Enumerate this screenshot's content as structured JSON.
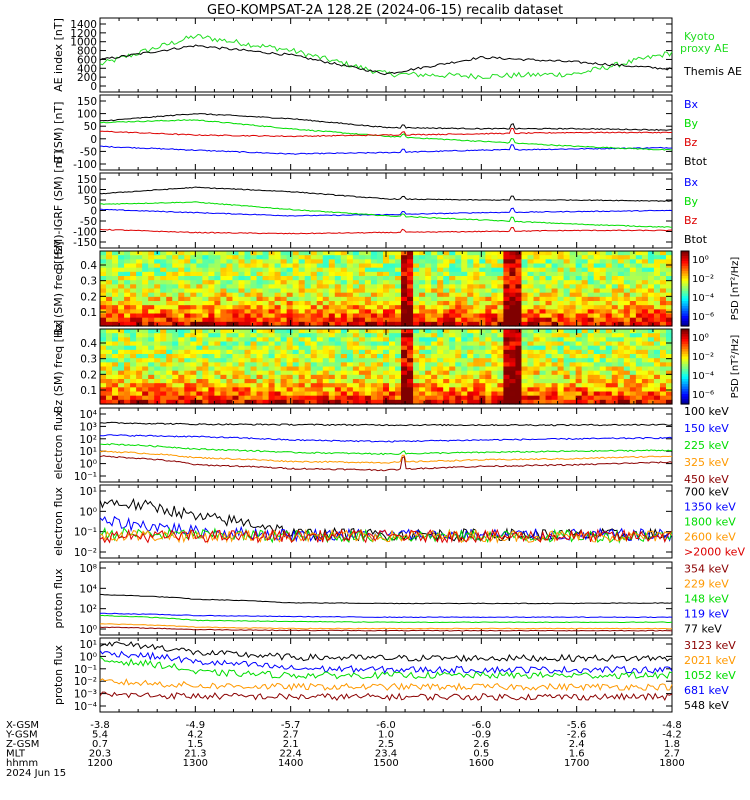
{
  "title": "GEO-KOMPSAT-2A 128.2E (2024-06-15) recalib dataset",
  "colors": {
    "black": "#000000",
    "blue": "#0000ff",
    "green": "#00dd00",
    "red": "#dd0000",
    "orange": "#ff9900",
    "darkred": "#8b0000",
    "cyan": "#0080ff",
    "ae_green": "#22dd22"
  },
  "panels": [
    {
      "ylabel": "AE index [nT]",
      "yticks": [
        "1400",
        "1200",
        "1000",
        "800",
        "600",
        "400",
        "200",
        "0"
      ],
      "legend": [
        {
          "text": "Kyoto proxy AE",
          "color": "#22dd22"
        },
        {
          "text": "Themis AE",
          "color": "#000000"
        }
      ]
    },
    {
      "ylabel": "B (SM) [nT]",
      "yticks": [
        "150",
        "100",
        "50",
        "0",
        "-50",
        "-100"
      ],
      "legend": [
        {
          "text": "Bx",
          "color": "#0000ff"
        },
        {
          "text": "By",
          "color": "#00dd00"
        },
        {
          "text": "Bz",
          "color": "#dd0000"
        },
        {
          "text": "Btot",
          "color": "#000000"
        }
      ]
    },
    {
      "ylabel": "B (SM)-IGRF (SM) [nT]",
      "yticks": [
        "150",
        "100",
        "50",
        "0",
        "-50",
        "-100",
        "-150"
      ],
      "legend": [
        {
          "text": "Bx",
          "color": "#0000ff"
        },
        {
          "text": "By",
          "color": "#00dd00"
        },
        {
          "text": "Bz",
          "color": "#dd0000"
        },
        {
          "text": "Btot",
          "color": "#000000"
        }
      ]
    },
    {
      "ylabel": "Bx (SM) freq [Hz]",
      "yticks": [
        "0.4",
        "0.3",
        "0.2",
        "0.1"
      ],
      "colorbar_label": "PSD [nT²/Hz]",
      "colorbar_ticks": [
        "10⁰",
        "10⁻²",
        "10⁻⁴",
        "10⁻⁶"
      ]
    },
    {
      "ylabel": "Bz (SM) freq [Hz]",
      "yticks": [
        "0.4",
        "0.3",
        "0.2",
        "0.1"
      ],
      "colorbar_label": "PSD [nT²/Hz]",
      "colorbar_ticks": [
        "10⁰",
        "10⁻²",
        "10⁻⁴",
        "10⁻⁶"
      ]
    },
    {
      "ylabel": "electron flux",
      "yticks": [
        "10⁴",
        "10³",
        "10²",
        "10¹",
        "10⁰",
        "10⁻¹"
      ],
      "legend": [
        {
          "text": "100 keV",
          "color": "#000000"
        },
        {
          "text": "150 keV",
          "color": "#0000ff"
        },
        {
          "text": "225 keV",
          "color": "#00dd00"
        },
        {
          "text": "325 keV",
          "color": "#ff9900"
        },
        {
          "text": "450 keV",
          "color": "#8b0000"
        }
      ]
    },
    {
      "ylabel": "electron flux",
      "yticks": [
        "10¹",
        "10⁰",
        "10⁻¹",
        "10⁻²"
      ],
      "legend": [
        {
          "text": "700 keV",
          "color": "#000000"
        },
        {
          "text": "1350 keV",
          "color": "#0000ff"
        },
        {
          "text": "1800 keV",
          "color": "#00dd00"
        },
        {
          "text": "2600 keV",
          "color": "#ff9900"
        },
        {
          "text": ">2000 keV",
          "color": "#dd0000"
        }
      ]
    },
    {
      "ylabel": "proton flux",
      "yticks": [
        "10⁸",
        "10⁴",
        "10²",
        "10⁰"
      ],
      "legend": [
        {
          "text": "354 keV",
          "color": "#8b0000"
        },
        {
          "text": "229 keV",
          "color": "#ff9900"
        },
        {
          "text": "148 keV",
          "color": "#00dd00"
        },
        {
          "text": "119 keV",
          "color": "#0000ff"
        },
        {
          "text": "77 keV",
          "color": "#000000"
        }
      ]
    },
    {
      "ylabel": "proton flux",
      "yticks": [
        "10¹",
        "10⁰",
        "10⁻¹",
        "10⁻²",
        "10⁻³",
        "10⁻⁴"
      ],
      "legend": [
        {
          "text": "3123 keV",
          "color": "#8b0000"
        },
        {
          "text": "2021 keV",
          "color": "#ff9900"
        },
        {
          "text": "1052 keV",
          "color": "#00dd00"
        },
        {
          "text": "681 keV",
          "color": "#0000ff"
        },
        {
          "text": "548 keV",
          "color": "#000000"
        }
      ]
    }
  ],
  "ephemeris": {
    "rows": [
      {
        "label": "X-GSM",
        "values": [
          "-3.8",
          "-4.9",
          "-5.7",
          "-6.0",
          "-6.0",
          "-5.6",
          "-4.8"
        ]
      },
      {
        "label": "Y-GSM",
        "values": [
          "5.4",
          "4.2",
          "2.7",
          "1.0",
          "-0.9",
          "-2.6",
          "-4.2"
        ]
      },
      {
        "label": "Z-GSM",
        "values": [
          "0.7",
          "1.5",
          "2.1",
          "2.5",
          "2.6",
          "2.4",
          "1.8"
        ]
      },
      {
        "label": "MLT",
        "values": [
          "20.3",
          "21.3",
          "22.4",
          "23.4",
          "0.5",
          "1.6",
          "2.7"
        ]
      },
      {
        "label": "hhmm",
        "values": [
          "1200",
          "1300",
          "1400",
          "1500",
          "1600",
          "1700",
          "1800"
        ]
      }
    ],
    "date_label": "2024 Jun 15"
  },
  "chart_data": {
    "type": "line",
    "x": [
      "1200",
      "1300",
      "1400",
      "1500",
      "1600",
      "1700",
      "1800"
    ],
    "xlabel": "hhmm",
    "series_ae": [
      {
        "name": "Kyoto proxy AE",
        "values": [
          500,
          1100,
          800,
          300,
          250,
          300,
          750
        ]
      },
      {
        "name": "Themis AE",
        "values": [
          600,
          900,
          700,
          300,
          650,
          550,
          400
        ]
      }
    ],
    "series_b": [
      {
        "name": "Bx",
        "values": [
          -30,
          -45,
          -60,
          -55,
          -45,
          -40,
          -35
        ]
      },
      {
        "name": "By",
        "values": [
          65,
          75,
          40,
          10,
          -10,
          -30,
          -45
        ]
      },
      {
        "name": "Bz",
        "values": [
          30,
          15,
          10,
          15,
          20,
          25,
          25
        ]
      },
      {
        "name": "Btot",
        "values": [
          70,
          100,
          80,
          45,
          40,
          40,
          35
        ]
      }
    ],
    "electron_low": [
      {
        "name": "100 keV",
        "values": [
          2000,
          1500,
          1400,
          1300,
          1300,
          1300,
          1400
        ]
      },
      {
        "name": "150 keV",
        "values": [
          200,
          150,
          80,
          60,
          80,
          100,
          120
        ]
      },
      {
        "name": "225 keV",
        "values": [
          40,
          15,
          8,
          6,
          8,
          10,
          12
        ]
      },
      {
        "name": "325 keV",
        "values": [
          10,
          3,
          1.5,
          1.2,
          2,
          2.5,
          4
        ]
      },
      {
        "name": "450 keV",
        "values": [
          4,
          0.8,
          0.4,
          0.3,
          0.6,
          0.8,
          1.3
        ]
      }
    ]
  }
}
